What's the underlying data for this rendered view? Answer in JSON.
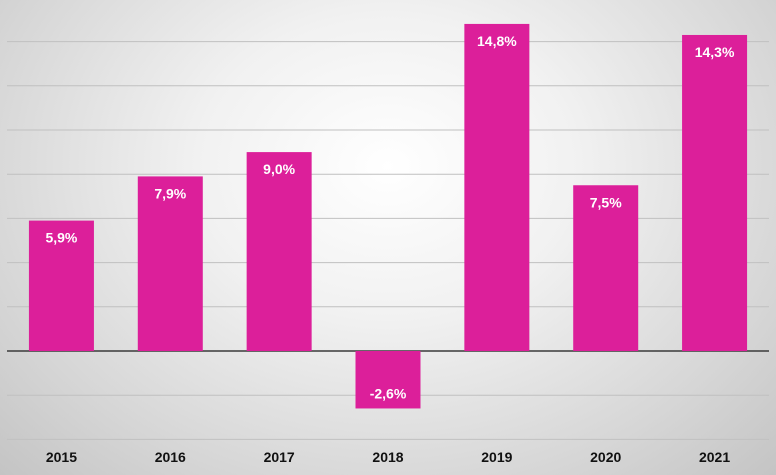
{
  "chart_data": {
    "type": "bar",
    "categories": [
      "2015",
      "2016",
      "2017",
      "2018",
      "2019",
      "2020",
      "2021"
    ],
    "values": [
      5.9,
      7.9,
      9.0,
      -2.6,
      14.8,
      7.5,
      14.3
    ],
    "data_labels": [
      "5,9%",
      "7,9%",
      "9,0%",
      "-2,6%",
      "14,8%",
      "7,5%",
      "14,3%"
    ],
    "title": "",
    "xlabel": "",
    "ylabel": "",
    "ylim": [
      -4,
      14
    ],
    "grid": true,
    "legend": "none",
    "bar_color": "#dc1f9a",
    "grid_color": "#c0c0c0",
    "zero_line_color": "#3a3a3a"
  }
}
